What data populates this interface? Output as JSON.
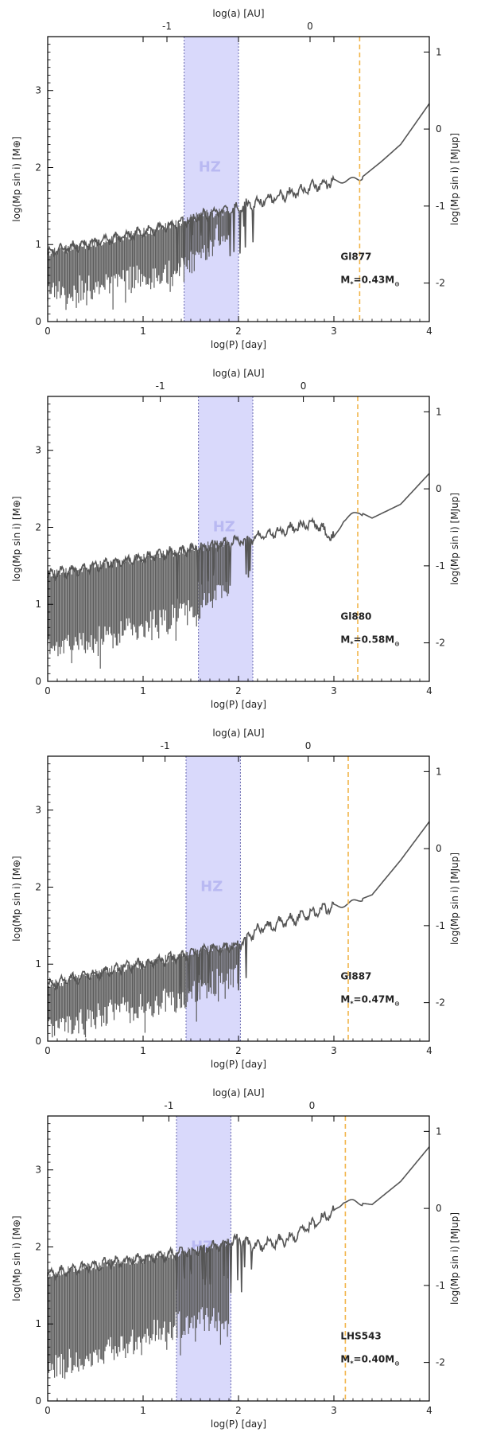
{
  "chart_data": [
    {
      "type": "line",
      "star": "Gl877",
      "mass_label": "M",
      "mass_sub": "*",
      "mass_value": "=0.43M",
      "mass_sun": "⊙",
      "hz_label": "HZ",
      "xlabel": "log(P) [day]",
      "ylabel_left": "log(Mp sin i) [M⊕]",
      "ylabel_right": "log(Mp sin i) [MJup]",
      "toplabel": "log(a) [AU]",
      "xlim": [
        0,
        4
      ],
      "ylim": [
        0,
        3.7
      ],
      "x_ticks": [
        "0",
        "1",
        "2",
        "3",
        "4"
      ],
      "y_ticks": [
        "0",
        "1",
        "2",
        "3"
      ],
      "right_ticks": [
        "1",
        "0",
        "-1",
        "-2"
      ],
      "top_ticks": [
        {
          "label": "-1",
          "logP": 1.25
        },
        {
          "label": "0",
          "logP": 2.75
        }
      ],
      "hz_range": [
        1.43,
        2.0
      ],
      "dashed_x": 3.27,
      "envelope": [
        [
          0.0,
          0.9
        ],
        [
          0.3,
          0.98
        ],
        [
          0.6,
          1.05
        ],
        [
          0.9,
          1.13
        ],
        [
          1.2,
          1.22
        ],
        [
          1.43,
          1.3
        ],
        [
          1.6,
          1.38
        ],
        [
          1.8,
          1.42
        ],
        [
          2.0,
          1.47
        ],
        [
          2.2,
          1.55
        ],
        [
          2.4,
          1.62
        ],
        [
          2.6,
          1.68
        ],
        [
          2.8,
          1.76
        ],
        [
          3.0,
          1.82
        ],
        [
          3.27,
          1.85
        ],
        [
          3.5,
          2.08
        ],
        [
          3.7,
          2.3
        ],
        [
          4.0,
          2.83
        ]
      ],
      "floor": [
        [
          0.0,
          0.25
        ],
        [
          1.4,
          0.55
        ],
        [
          1.9,
          1.15
        ],
        [
          2.0,
          1.38
        ]
      ],
      "dense_until": 1.9
    },
    {
      "type": "line",
      "star": "Gl880",
      "mass_label": "M",
      "mass_sub": "*",
      "mass_value": "=0.58M",
      "mass_sun": "⊙",
      "hz_label": "HZ",
      "xlabel": "log(P) [day]",
      "ylabel_left": "log(Mp sin i) [M⊕]",
      "ylabel_right": "log(Mp sin i) [MJup]",
      "toplabel": "log(a) [AU]",
      "xlim": [
        0,
        4
      ],
      "ylim": [
        0,
        3.7
      ],
      "x_ticks": [
        "0",
        "1",
        "2",
        "3",
        "4"
      ],
      "y_ticks": [
        "0",
        "1",
        "2",
        "3"
      ],
      "right_ticks": [
        "1",
        "0",
        "-1",
        "-2"
      ],
      "top_ticks": [
        {
          "label": "-1",
          "logP": 1.18
        },
        {
          "label": "0",
          "logP": 2.68
        }
      ],
      "hz_range": [
        1.58,
        2.15
      ],
      "dashed_x": 3.25,
      "envelope": [
        [
          0.0,
          1.38
        ],
        [
          0.3,
          1.45
        ],
        [
          0.6,
          1.52
        ],
        [
          0.9,
          1.58
        ],
        [
          1.2,
          1.65
        ],
        [
          1.5,
          1.72
        ],
        [
          1.8,
          1.78
        ],
        [
          2.1,
          1.85
        ],
        [
          2.4,
          1.93
        ],
        [
          2.6,
          2.0
        ],
        [
          2.8,
          2.05
        ],
        [
          3.0,
          1.85
        ],
        [
          3.1,
          2.1
        ],
        [
          3.27,
          2.2
        ],
        [
          3.4,
          2.12
        ],
        [
          3.7,
          2.3
        ],
        [
          4.0,
          2.7
        ]
      ],
      "floor": [
        [
          0.0,
          0.28
        ],
        [
          1.4,
          0.75
        ],
        [
          1.9,
          1.05
        ],
        [
          2.0,
          1.45
        ]
      ],
      "dense_until": 1.9
    },
    {
      "type": "line",
      "star": "Gl887",
      "mass_label": "M",
      "mass_sub": "*",
      "mass_value": "=0.47M",
      "mass_sun": "⊙",
      "hz_label": "HZ",
      "xlabel": "log(P) [day]",
      "ylabel_left": "log(Mp sin i) [M⊕]",
      "ylabel_right": "log(Mp sin i) [MJup]",
      "toplabel": "log(a) [AU]",
      "xlim": [
        0,
        4
      ],
      "ylim": [
        0,
        3.7
      ],
      "x_ticks": [
        "0",
        "1",
        "2",
        "3",
        "4"
      ],
      "y_ticks": [
        "0",
        "1",
        "2",
        "3"
      ],
      "right_ticks": [
        "1",
        "0",
        "-1",
        "-2"
      ],
      "top_ticks": [
        {
          "label": "-1",
          "logP": 1.23
        },
        {
          "label": "0",
          "logP": 2.73
        }
      ],
      "hz_range": [
        1.45,
        2.02
      ],
      "dashed_x": 3.15,
      "envelope": [
        [
          0.0,
          0.72
        ],
        [
          0.3,
          0.82
        ],
        [
          0.6,
          0.9
        ],
        [
          0.9,
          0.98
        ],
        [
          1.2,
          1.05
        ],
        [
          1.45,
          1.12
        ],
        [
          1.7,
          1.2
        ],
        [
          2.0,
          1.25
        ],
        [
          2.2,
          1.45
        ],
        [
          2.5,
          1.55
        ],
        [
          2.8,
          1.68
        ],
        [
          3.0,
          1.75
        ],
        [
          3.15,
          1.78
        ],
        [
          3.4,
          1.9
        ],
        [
          3.7,
          2.35
        ],
        [
          4.0,
          2.85
        ]
      ],
      "floor": [
        [
          0.0,
          0.1
        ],
        [
          1.4,
          0.45
        ],
        [
          1.9,
          0.75
        ],
        [
          2.0,
          0.8
        ]
      ],
      "dense_until": 2.0
    },
    {
      "type": "line",
      "star": "LHS543",
      "mass_label": "M",
      "mass_sub": "*",
      "mass_value": "=0.40M",
      "mass_sun": "⊙",
      "hz_label": "HZ",
      "xlabel": "log(P) [day]",
      "ylabel_left": "log(Mp sin i) [M⊕]",
      "ylabel_right": "log(Mp sin i) [MJup]",
      "toplabel": "log(a) [AU]",
      "xlim": [
        0,
        4
      ],
      "ylim": [
        0,
        3.7
      ],
      "x_ticks": [
        "0",
        "1",
        "2",
        "3",
        "4"
      ],
      "y_ticks": [
        "0",
        "1",
        "2",
        "3"
      ],
      "right_ticks": [
        "1",
        "0",
        "-1",
        "-2"
      ],
      "top_ticks": [
        {
          "label": "-1",
          "logP": 1.27
        },
        {
          "label": "0",
          "logP": 2.77
        }
      ],
      "hz_range": [
        1.35,
        1.92
      ],
      "dashed_x": 3.12,
      "envelope": [
        [
          0.0,
          1.65
        ],
        [
          0.3,
          1.72
        ],
        [
          0.6,
          1.78
        ],
        [
          0.9,
          1.83
        ],
        [
          1.2,
          1.88
        ],
        [
          1.5,
          1.95
        ],
        [
          1.8,
          2.02
        ],
        [
          2.0,
          2.1
        ],
        [
          2.2,
          2.0
        ],
        [
          2.5,
          2.1
        ],
        [
          2.8,
          2.3
        ],
        [
          3.0,
          2.45
        ],
        [
          3.1,
          2.6
        ],
        [
          3.4,
          2.55
        ],
        [
          3.7,
          2.85
        ],
        [
          4.0,
          3.3
        ]
      ],
      "floor": [
        [
          0.0,
          0.3
        ],
        [
          1.4,
          0.9
        ],
        [
          1.9,
          1.0
        ],
        [
          2.0,
          1.9
        ]
      ],
      "dense_until": 1.9
    }
  ]
}
